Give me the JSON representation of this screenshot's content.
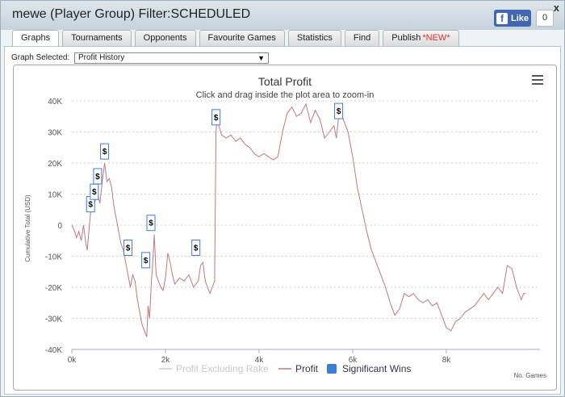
{
  "window": {
    "title": "mewe (Player Group) Filter:SCHEDULED",
    "close": "x"
  },
  "facebook": {
    "like_label": "Like",
    "count": "0"
  },
  "tabs": [
    {
      "label": "Graphs",
      "active": true
    },
    {
      "label": "Tournaments",
      "active": false
    },
    {
      "label": "Opponents",
      "active": false
    },
    {
      "label": "Favourite Games",
      "active": false
    },
    {
      "label": "Statistics",
      "active": false
    },
    {
      "label": "Find",
      "active": false
    },
    {
      "label": "Publish",
      "badge": "*NEW*",
      "active": false
    }
  ],
  "graph_selector": {
    "label": "Graph Selected:",
    "value": "Profit History"
  },
  "chart_data": {
    "type": "line",
    "title": "Total Profit",
    "subtitle": "Click and drag inside the plot area to zoom-in",
    "ylabel": "Cumulative Total (USD)",
    "xlabel": "No. Games",
    "xlim": [
      0,
      10000
    ],
    "ylim": [
      -40000,
      40000
    ],
    "x_ticks": [
      "0k",
      "2k",
      "4k",
      "6k",
      "8k"
    ],
    "x_tick_values": [
      0,
      2000,
      4000,
      6000,
      8000
    ],
    "y_ticks": [
      "40K",
      "30K",
      "20K",
      "10K",
      "0",
      "-10K",
      "-20K",
      "-30K",
      "-40K"
    ],
    "y_tick_values": [
      40000,
      30000,
      20000,
      10000,
      0,
      -10000,
      -20000,
      -30000,
      -40000
    ],
    "grid": "horizontal dotted",
    "legend_position": "bottom-center",
    "legend": [
      {
        "label": "Profit Excluding Rake",
        "color": "#cccccc",
        "kind": "line"
      },
      {
        "label": "Profit",
        "color": "#c0797c",
        "kind": "line"
      },
      {
        "label": "Significant Wins",
        "color": "#3b7dd8",
        "kind": "square"
      }
    ],
    "series": [
      {
        "name": "Profit",
        "color": "#c0797c",
        "points": [
          [
            0,
            0
          ],
          [
            60,
            -2000
          ],
          [
            100,
            -4000
          ],
          [
            150,
            -2000
          ],
          [
            200,
            -5000
          ],
          [
            250,
            0
          ],
          [
            300,
            -6000
          ],
          [
            330,
            -8000
          ],
          [
            370,
            -1000
          ],
          [
            400,
            4000
          ],
          [
            450,
            5000
          ],
          [
            500,
            8000
          ],
          [
            550,
            10000
          ],
          [
            600,
            7000
          ],
          [
            650,
            14000
          ],
          [
            700,
            20000
          ],
          [
            750,
            14000
          ],
          [
            800,
            15000
          ],
          [
            850,
            12000
          ],
          [
            900,
            6000
          ],
          [
            950,
            2000
          ],
          [
            1000,
            -2000
          ],
          [
            1050,
            -6000
          ],
          [
            1100,
            -8000
          ],
          [
            1150,
            -12000
          ],
          [
            1200,
            -16000
          ],
          [
            1250,
            -20000
          ],
          [
            1300,
            -16000
          ],
          [
            1350,
            -18000
          ],
          [
            1400,
            -24000
          ],
          [
            1450,
            -28000
          ],
          [
            1500,
            -32000
          ],
          [
            1550,
            -34000
          ],
          [
            1600,
            -36000
          ],
          [
            1630,
            -26000
          ],
          [
            1660,
            -30000
          ],
          [
            1700,
            -18000
          ],
          [
            1730,
            -12000
          ],
          [
            1760,
            -3000
          ],
          [
            1800,
            -16000
          ],
          [
            1850,
            -18000
          ],
          [
            1900,
            -20000
          ],
          [
            1950,
            -21000
          ],
          [
            2000,
            -17000
          ],
          [
            2050,
            -9000
          ],
          [
            2100,
            -12000
          ],
          [
            2150,
            -16000
          ],
          [
            2200,
            -19000
          ],
          [
            2300,
            -17000
          ],
          [
            2400,
            -18000
          ],
          [
            2500,
            -16000
          ],
          [
            2600,
            -20000
          ],
          [
            2700,
            -18000
          ],
          [
            2750,
            -13000
          ],
          [
            2800,
            -12000
          ],
          [
            2850,
            -18000
          ],
          [
            2900,
            -20000
          ],
          [
            2950,
            -22000
          ],
          [
            3000,
            -20000
          ],
          [
            3050,
            -18000
          ],
          [
            3080,
            30000
          ],
          [
            3100,
            34000
          ],
          [
            3200,
            29000
          ],
          [
            3300,
            28000
          ],
          [
            3400,
            29000
          ],
          [
            3500,
            27000
          ],
          [
            3600,
            28000
          ],
          [
            3700,
            26000
          ],
          [
            3800,
            25000
          ],
          [
            3900,
            23000
          ],
          [
            4000,
            22000
          ],
          [
            4100,
            23000
          ],
          [
            4200,
            22000
          ],
          [
            4300,
            21000
          ],
          [
            4400,
            22000
          ],
          [
            4500,
            30000
          ],
          [
            4600,
            36000
          ],
          [
            4700,
            38000
          ],
          [
            4800,
            35000
          ],
          [
            4900,
            36000
          ],
          [
            5000,
            39000
          ],
          [
            5100,
            33000
          ],
          [
            5200,
            37000
          ],
          [
            5300,
            34000
          ],
          [
            5400,
            28000
          ],
          [
            5500,
            30000
          ],
          [
            5600,
            32000
          ],
          [
            5650,
            28000
          ],
          [
            5700,
            35000
          ],
          [
            5750,
            36000
          ],
          [
            5800,
            34000
          ],
          [
            5850,
            32000
          ],
          [
            5900,
            30000
          ],
          [
            6000,
            22000
          ],
          [
            6100,
            12000
          ],
          [
            6200,
            5000
          ],
          [
            6300,
            -2000
          ],
          [
            6400,
            -8000
          ],
          [
            6500,
            -12000
          ],
          [
            6600,
            -16000
          ],
          [
            6700,
            -20000
          ],
          [
            6800,
            -25000
          ],
          [
            6900,
            -29000
          ],
          [
            7000,
            -27000
          ],
          [
            7100,
            -22000
          ],
          [
            7200,
            -23000
          ],
          [
            7300,
            -22000
          ],
          [
            7400,
            -24000
          ],
          [
            7500,
            -25000
          ],
          [
            7600,
            -24000
          ],
          [
            7700,
            -26000
          ],
          [
            7800,
            -25000
          ],
          [
            7900,
            -29000
          ],
          [
            8000,
            -33000
          ],
          [
            8100,
            -34000
          ],
          [
            8200,
            -31000
          ],
          [
            8300,
            -30000
          ],
          [
            8400,
            -28000
          ],
          [
            8500,
            -27000
          ],
          [
            8600,
            -26000
          ],
          [
            8700,
            -24000
          ],
          [
            8800,
            -22000
          ],
          [
            8900,
            -24000
          ],
          [
            9000,
            -22000
          ],
          [
            9100,
            -20000
          ],
          [
            9200,
            -22000
          ],
          [
            9300,
            -13000
          ],
          [
            9400,
            -14000
          ],
          [
            9500,
            -20000
          ],
          [
            9600,
            -24000
          ],
          [
            9650,
            -22000
          ],
          [
            9700,
            -22000
          ]
        ]
      }
    ],
    "significant_wins": [
      {
        "x": 400,
        "y": 4000,
        "label": "$"
      },
      {
        "x": 480,
        "y": 8000,
        "label": "$"
      },
      {
        "x": 550,
        "y": 13000,
        "label": "$"
      },
      {
        "x": 700,
        "y": 21000,
        "label": "$"
      },
      {
        "x": 1200,
        "y": -10000,
        "label": "$"
      },
      {
        "x": 1580,
        "y": -14000,
        "label": "$"
      },
      {
        "x": 1690,
        "y": -2000,
        "label": "$"
      },
      {
        "x": 2650,
        "y": -10000,
        "label": "$"
      },
      {
        "x": 3080,
        "y": 32000,
        "label": "$"
      },
      {
        "x": 5700,
        "y": 34000,
        "label": "$"
      }
    ]
  }
}
